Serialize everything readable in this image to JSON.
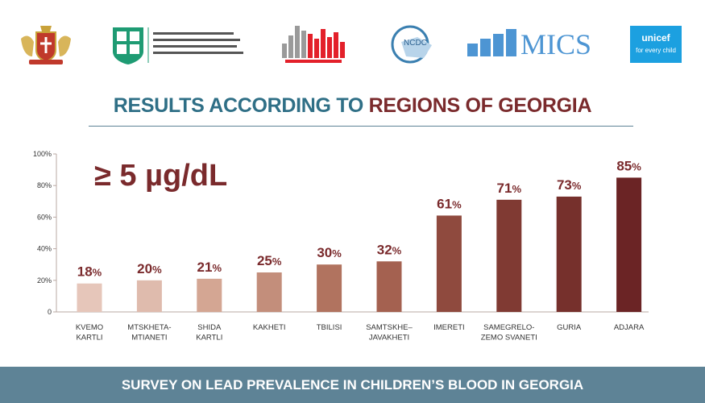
{
  "logos": {
    "coat_of_arms": "coat-of-arms",
    "ministry": "ministry-of-health-logo",
    "geostat": "geostat",
    "ncdc": "NCDC",
    "mics": "MICS",
    "unicef": "unicef",
    "unicef_tagline": "for every child"
  },
  "title": {
    "part1": "RESULTS ACCORDING TO ",
    "part2": "REGIONS OF GEORGIA"
  },
  "footer": "SURVEY ON LEAD PREVALENCE IN CHILDREN’S BLOOD IN GEORGIA",
  "colors": {
    "teal": "#2f6f86",
    "maroon": "#7a2a2c",
    "footer": "#5e8396"
  },
  "chart_data": {
    "type": "bar",
    "annotation": "≥ 5 µg/dL",
    "categories": [
      [
        "KVEMO",
        "KARTLI"
      ],
      [
        "MTSKHETA-",
        "MTIANETI"
      ],
      [
        "SHIDA",
        "KARTLI"
      ],
      [
        "KAKHETI"
      ],
      [
        "TBILISI"
      ],
      [
        "SAMTSKHE–",
        "JAVAKHETI"
      ],
      [
        "IMERETI"
      ],
      [
        "SAMEGRELO-",
        "ZEMO SVANETI"
      ],
      [
        "GURIA"
      ],
      [
        "ADJARA"
      ]
    ],
    "values": [
      18,
      20,
      21,
      25,
      30,
      32,
      61,
      71,
      73,
      85
    ],
    "bar_colors": [
      "#e6c6ba",
      "#dfbbad",
      "#d4a693",
      "#c38e7b",
      "#b1735f",
      "#a46150",
      "#8f4a3e",
      "#803a33",
      "#76302c",
      "#6b2425"
    ],
    "yticks": [
      "0",
      "20%",
      "40%",
      "60%",
      "80%",
      "100%"
    ],
    "ylim": [
      0,
      100
    ],
    "xlabel": "",
    "ylabel": ""
  }
}
